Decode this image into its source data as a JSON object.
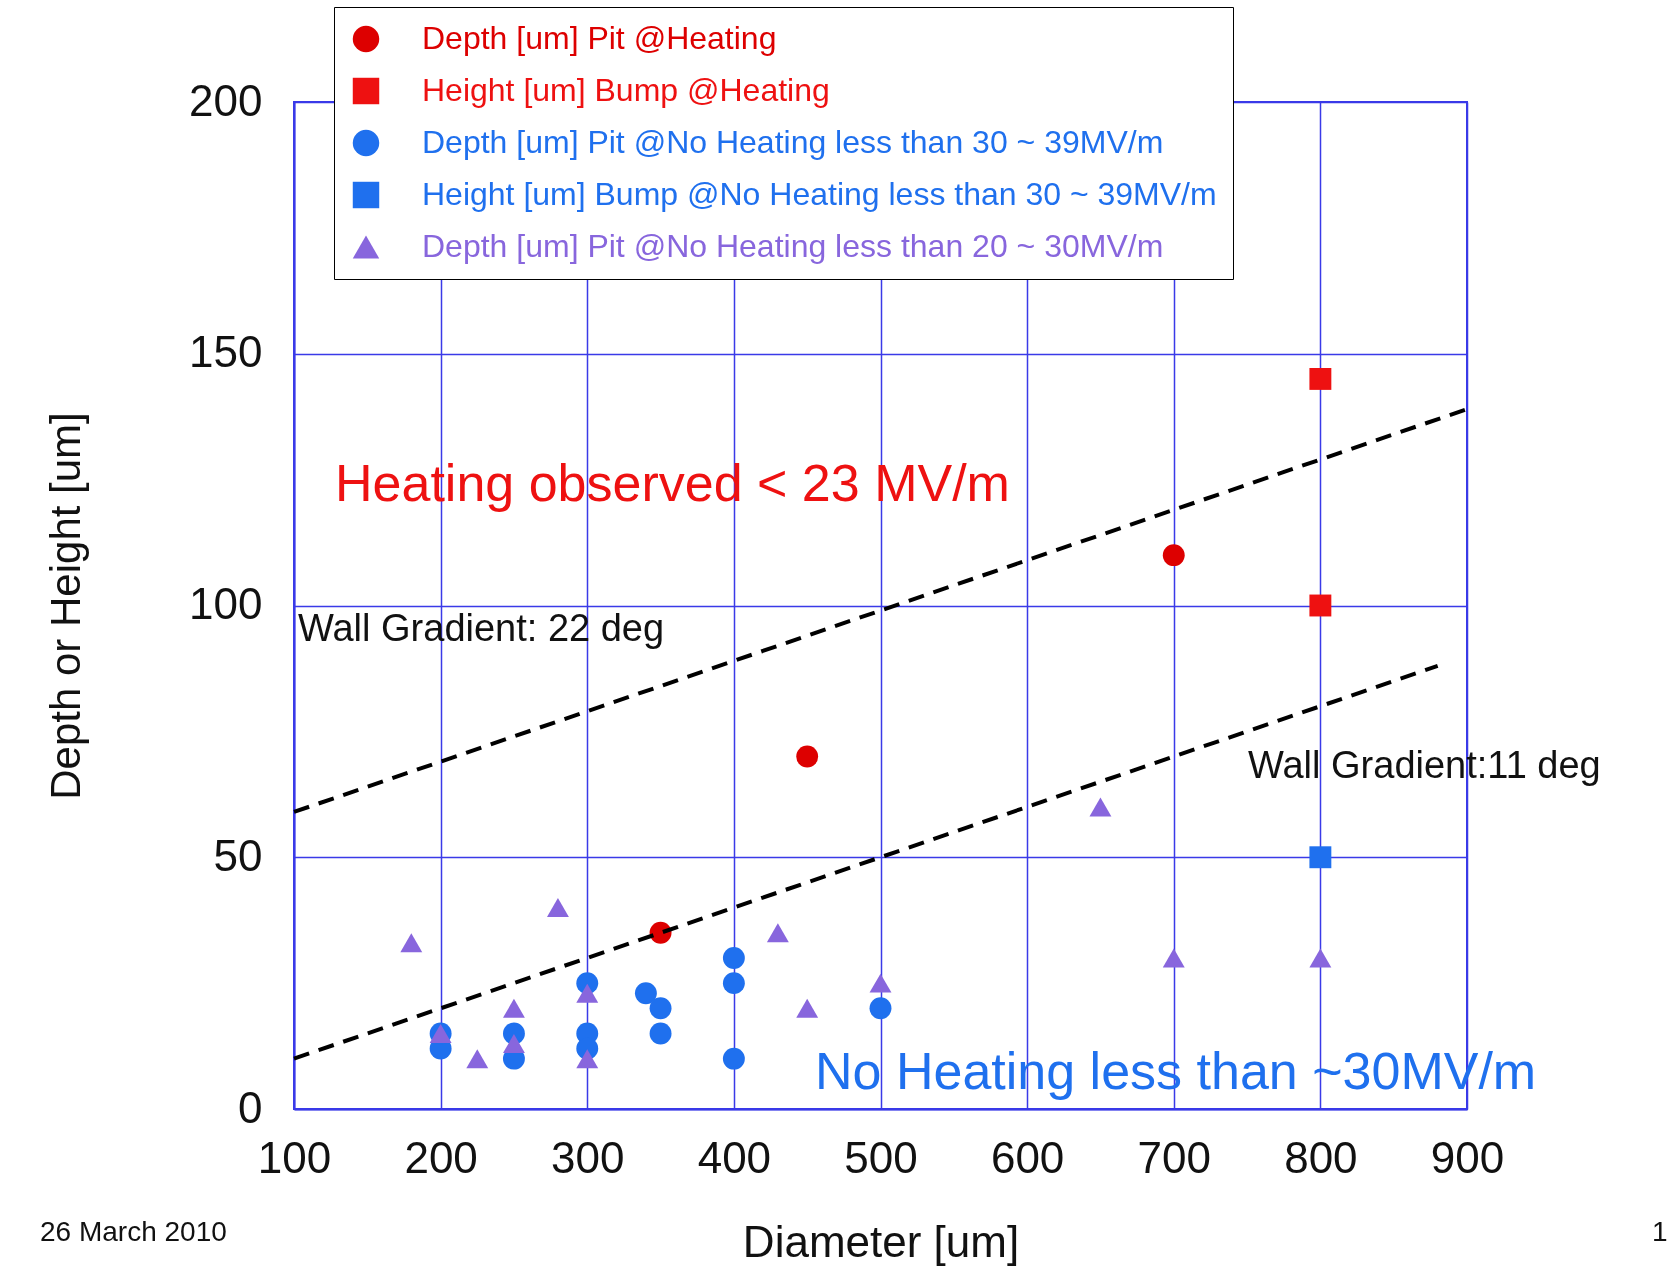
{
  "chart_data": {
    "type": "scatter",
    "xlabel": "Diameter [um]",
    "ylabel": "Depth or Height [um]",
    "xlim": [
      100,
      900
    ],
    "xticks": [
      100,
      200,
      300,
      400,
      500,
      600,
      700,
      800,
      900
    ],
    "ylim": [
      0,
      200
    ],
    "yticks": [
      0,
      50,
      100,
      150,
      200
    ],
    "grid": true,
    "legend": "top",
    "series": [
      {
        "name": "Depth [um] Pit @Heating",
        "color": "#dd0000",
        "marker": "circle",
        "x": [
          350,
          450,
          700
        ],
        "values": [
          35,
          70,
          110
        ]
      },
      {
        "name": "Height [um] Bump @Heating",
        "color": "#ee1111",
        "marker": "square",
        "x": [
          800,
          800
        ],
        "values": [
          145,
          100
        ]
      },
      {
        "name": "Depth [um] Pit @No Heating less than 30 ~ 39MV/m",
        "color": "#1f70ee",
        "marker": "circle",
        "x": [
          200,
          200,
          250,
          250,
          300,
          300,
          300,
          340,
          350,
          350,
          400,
          400,
          400,
          500
        ],
        "values": [
          12,
          15,
          10,
          15,
          25,
          15,
          12,
          23,
          20,
          15,
          30,
          25,
          10,
          20
        ]
      },
      {
        "name": "Height [um] Bump @No Heating less than 30 ~ 39MV/m",
        "color": "#1f70ee",
        "marker": "square",
        "x": [
          800
        ],
        "values": [
          50
        ]
      },
      {
        "name": "Depth [um] Pit @No Heating less than 20 ~ 30MV/m",
        "color": "#8866dd",
        "marker": "triangle",
        "x": [
          180,
          200,
          225,
          250,
          250,
          280,
          300,
          300,
          430,
          450,
          500,
          650,
          700,
          800
        ],
        "values": [
          33,
          15,
          10,
          20,
          13,
          40,
          23,
          10,
          35,
          20,
          25,
          60,
          30,
          30
        ]
      },
      {
        "type": "line",
        "color": "#000000",
        "line_style": "dashed",
        "x": [
          100,
          900
        ],
        "values": [
          59,
          139
        ]
      },
      {
        "type": "line",
        "color": "#000000",
        "line_style": "dashed",
        "x": [
          100,
          880
        ],
        "values": [
          10,
          88
        ]
      }
    ],
    "annotations": [
      "Heating observed < 23 MV/m",
      "Wall Gradient: 22 deg",
      "Wall Gradient:11 deg",
      "No Heating less than ~30MV/m",
      "26 March 2010",
      "1"
    ]
  }
}
